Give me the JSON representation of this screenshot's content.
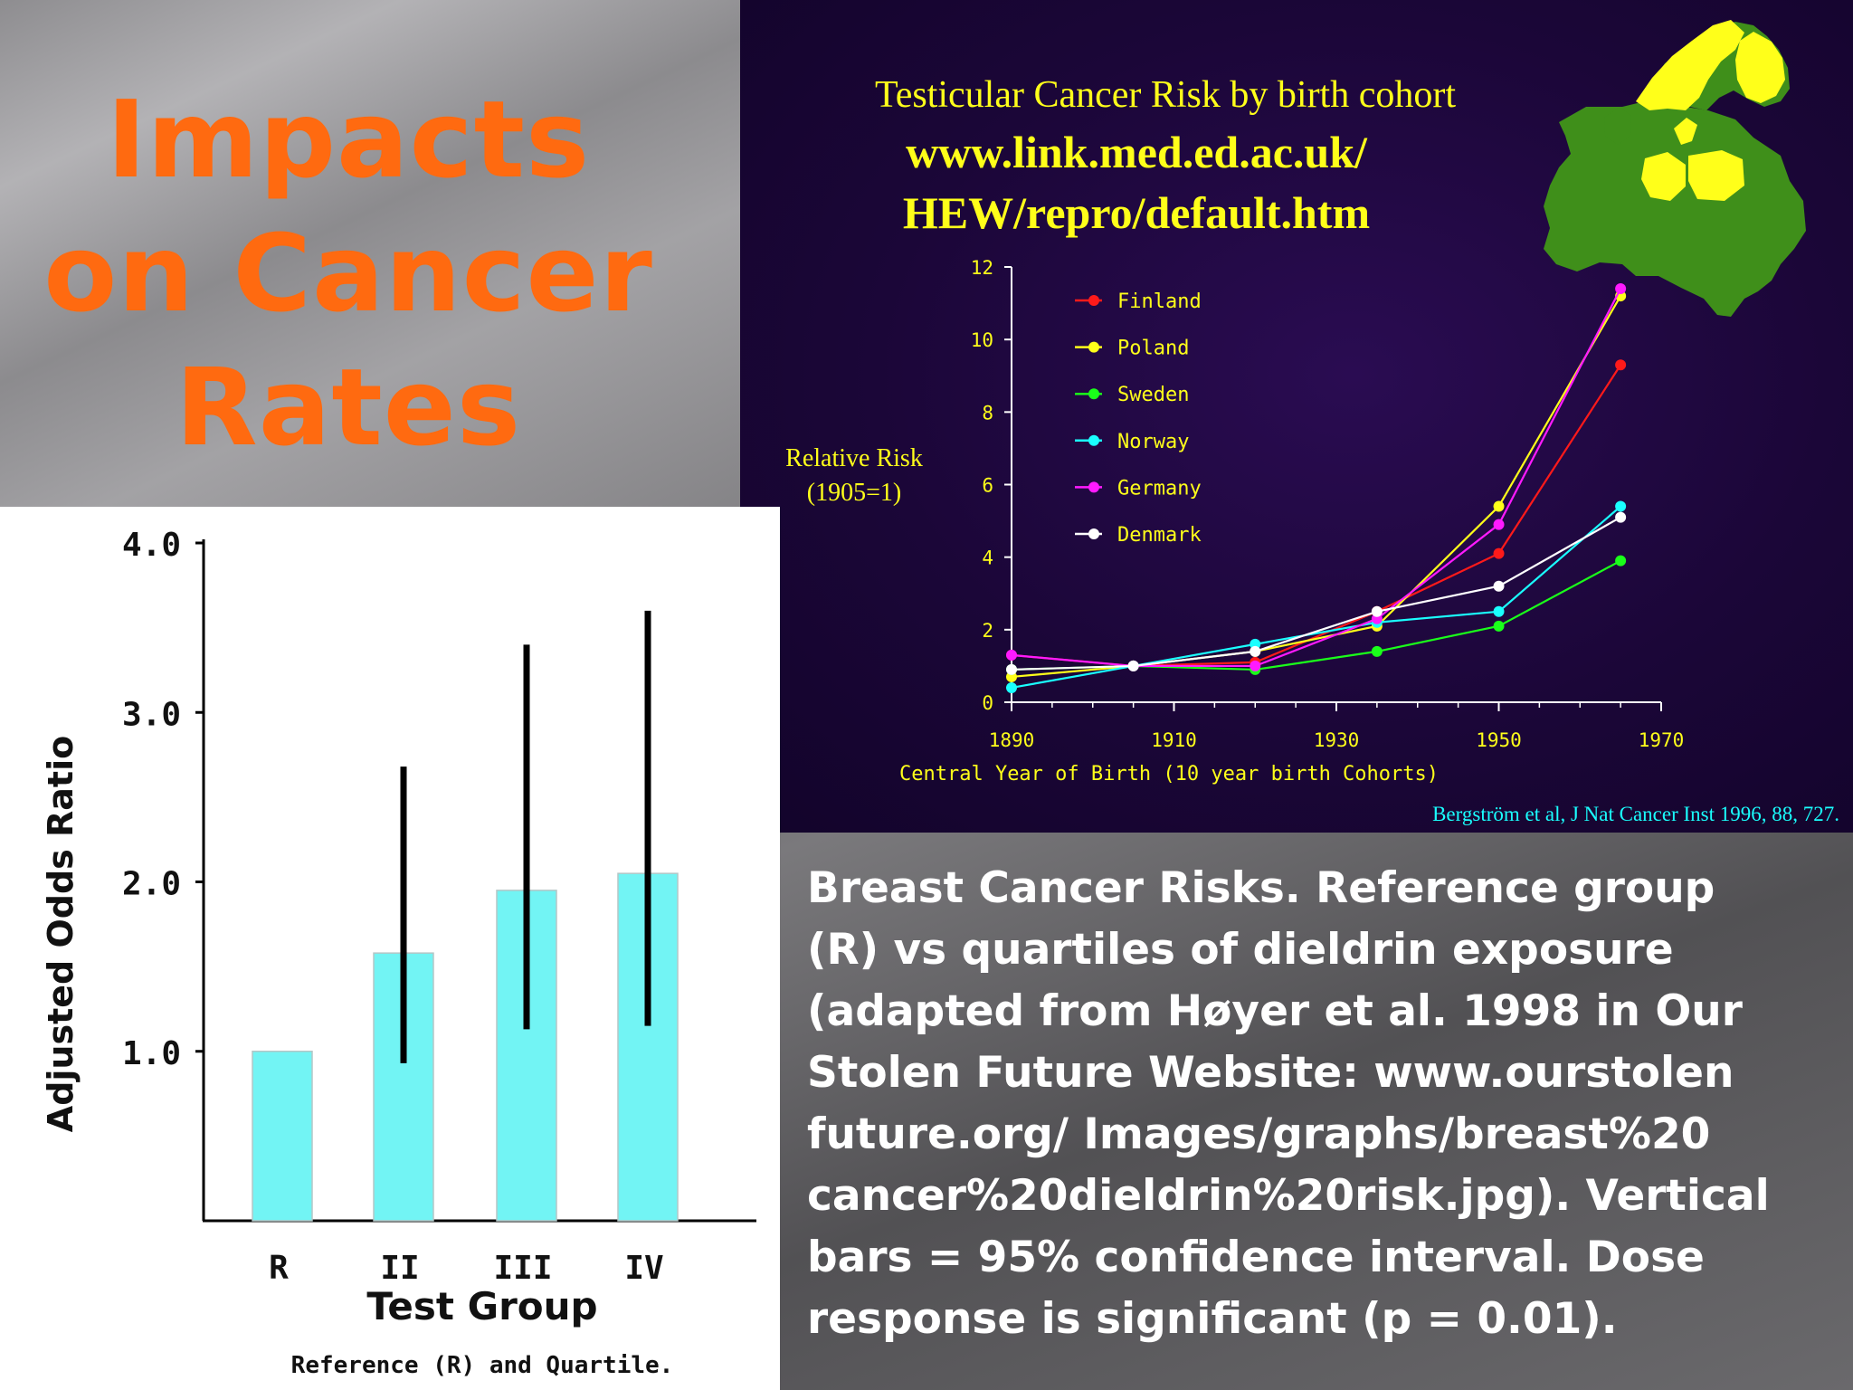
{
  "slide": {
    "title_lines": [
      "Impacts",
      "on Cancer",
      "Rates"
    ],
    "caption_lines": [
      "Breast Cancer Risks.  Reference group",
      "(R) vs quartiles of dieldrin exposure",
      "(adapted from Høyer et al. 1998 in Our",
      "Stolen Future Website: www.ourstolen",
      "future.org/ Images/graphs/breast%20",
      "cancer%20dieldrin%20risk.jpg). Vertical",
      "bars = 95% confidence interval.  Dose",
      "response is significant (p = 0.01)."
    ],
    "colors": {
      "title": "#ff6a10",
      "caption": "#ffffff"
    }
  },
  "chart_data": [
    {
      "type": "line",
      "title": "Testicular Cancer Risk by birth cohort",
      "subtitle_lines": [
        "www.link.med.ed.ac.uk/",
        "HEW/repro/default.htm"
      ],
      "xlabel": "Central Year of Birth (10 year birth Cohorts)",
      "ylabel_lines": [
        "Relative Risk",
        "(1905=1)"
      ],
      "source": "Bergström et al, J Nat Cancer Inst 1996, 88, 727.",
      "xlim": [
        1890,
        1970
      ],
      "ylim": [
        0,
        12
      ],
      "xticks": [
        1890,
        1910,
        1930,
        1950,
        1970
      ],
      "yticks": [
        0,
        2,
        4,
        6,
        8,
        10,
        12
      ],
      "x": [
        1890,
        1905,
        1920,
        1935,
        1950,
        1965
      ],
      "series": [
        {
          "name": "Finland",
          "color": "#ff1a1a",
          "values": [
            1.3,
            1.0,
            1.1,
            2.5,
            4.1,
            9.3
          ]
        },
        {
          "name": "Poland",
          "color": "#ffff1a",
          "values": [
            0.7,
            1.0,
            1.4,
            2.1,
            5.4,
            11.2
          ]
        },
        {
          "name": "Sweden",
          "color": "#1aff1a",
          "values": [
            0.9,
            1.0,
            0.9,
            1.4,
            2.1,
            3.9
          ]
        },
        {
          "name": "Norway",
          "color": "#1affff",
          "values": [
            0.4,
            1.0,
            1.6,
            2.2,
            2.5,
            5.4
          ]
        },
        {
          "name": "Germany",
          "color": "#ff1aff",
          "values": [
            1.3,
            1.0,
            1.0,
            2.3,
            4.9,
            11.4
          ]
        },
        {
          "name": "Denmark",
          "color": "#ffffff",
          "values": [
            0.9,
            1.0,
            1.4,
            2.5,
            3.2,
            5.1
          ]
        }
      ],
      "legend": "top-left",
      "grid": false,
      "map_colors": {
        "land": "#3f8f1a",
        "highlight": "#ffff1a"
      }
    },
    {
      "type": "bar",
      "categories": [
        "R",
        "II",
        "III",
        "IV"
      ],
      "values": [
        1.0,
        1.58,
        1.95,
        2.05
      ],
      "ci_low": [
        null,
        0.93,
        1.13,
        1.15
      ],
      "ci_high": [
        null,
        2.68,
        3.4,
        3.6
      ],
      "ylim": [
        0,
        4.0
      ],
      "yticks": [
        "1.0",
        "2.0",
        "3.0",
        "4.0"
      ],
      "ytick_values": [
        1,
        2,
        3,
        4
      ],
      "ylabel": "Adjusted Odds Ratio",
      "xlabel": "Test Group",
      "xsublabel": "Reference (R) and Quartile.",
      "bar_color": "#72f4f4",
      "grid": false
    }
  ]
}
